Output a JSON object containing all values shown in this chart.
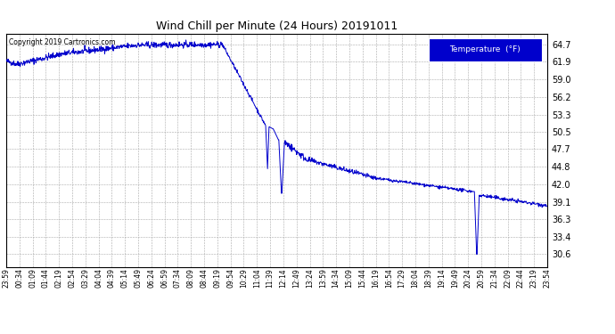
{
  "title": "Wind Chill per Minute (24 Hours) 20191011",
  "copyright": "Copyright 2019 Cartronics.com",
  "legend_label": "Temperature  (°F)",
  "yticks": [
    30.6,
    33.4,
    36.3,
    39.1,
    42.0,
    44.8,
    47.7,
    50.5,
    53.3,
    56.2,
    59.0,
    61.9,
    64.7
  ],
  "line_color": "#0000cc",
  "legend_bg": "#0000cc",
  "legend_text_color": "#ffffff",
  "background_color": "#ffffff",
  "grid_color": "#aaaaaa",
  "title_color": "#000000",
  "ymin": 28.5,
  "ymax": 66.5,
  "xtick_labels": [
    "23:59",
    "00:34",
    "01:09",
    "01:44",
    "02:19",
    "02:54",
    "03:29",
    "04:04",
    "04:39",
    "05:14",
    "05:49",
    "06:24",
    "06:59",
    "07:34",
    "08:09",
    "08:44",
    "09:19",
    "09:54",
    "10:29",
    "11:04",
    "11:39",
    "12:14",
    "12:49",
    "13:24",
    "13:59",
    "14:34",
    "15:09",
    "15:44",
    "16:19",
    "16:54",
    "17:29",
    "18:04",
    "18:39",
    "19:14",
    "19:49",
    "20:24",
    "20:59",
    "21:34",
    "22:09",
    "22:44",
    "23:19",
    "23:54"
  ]
}
